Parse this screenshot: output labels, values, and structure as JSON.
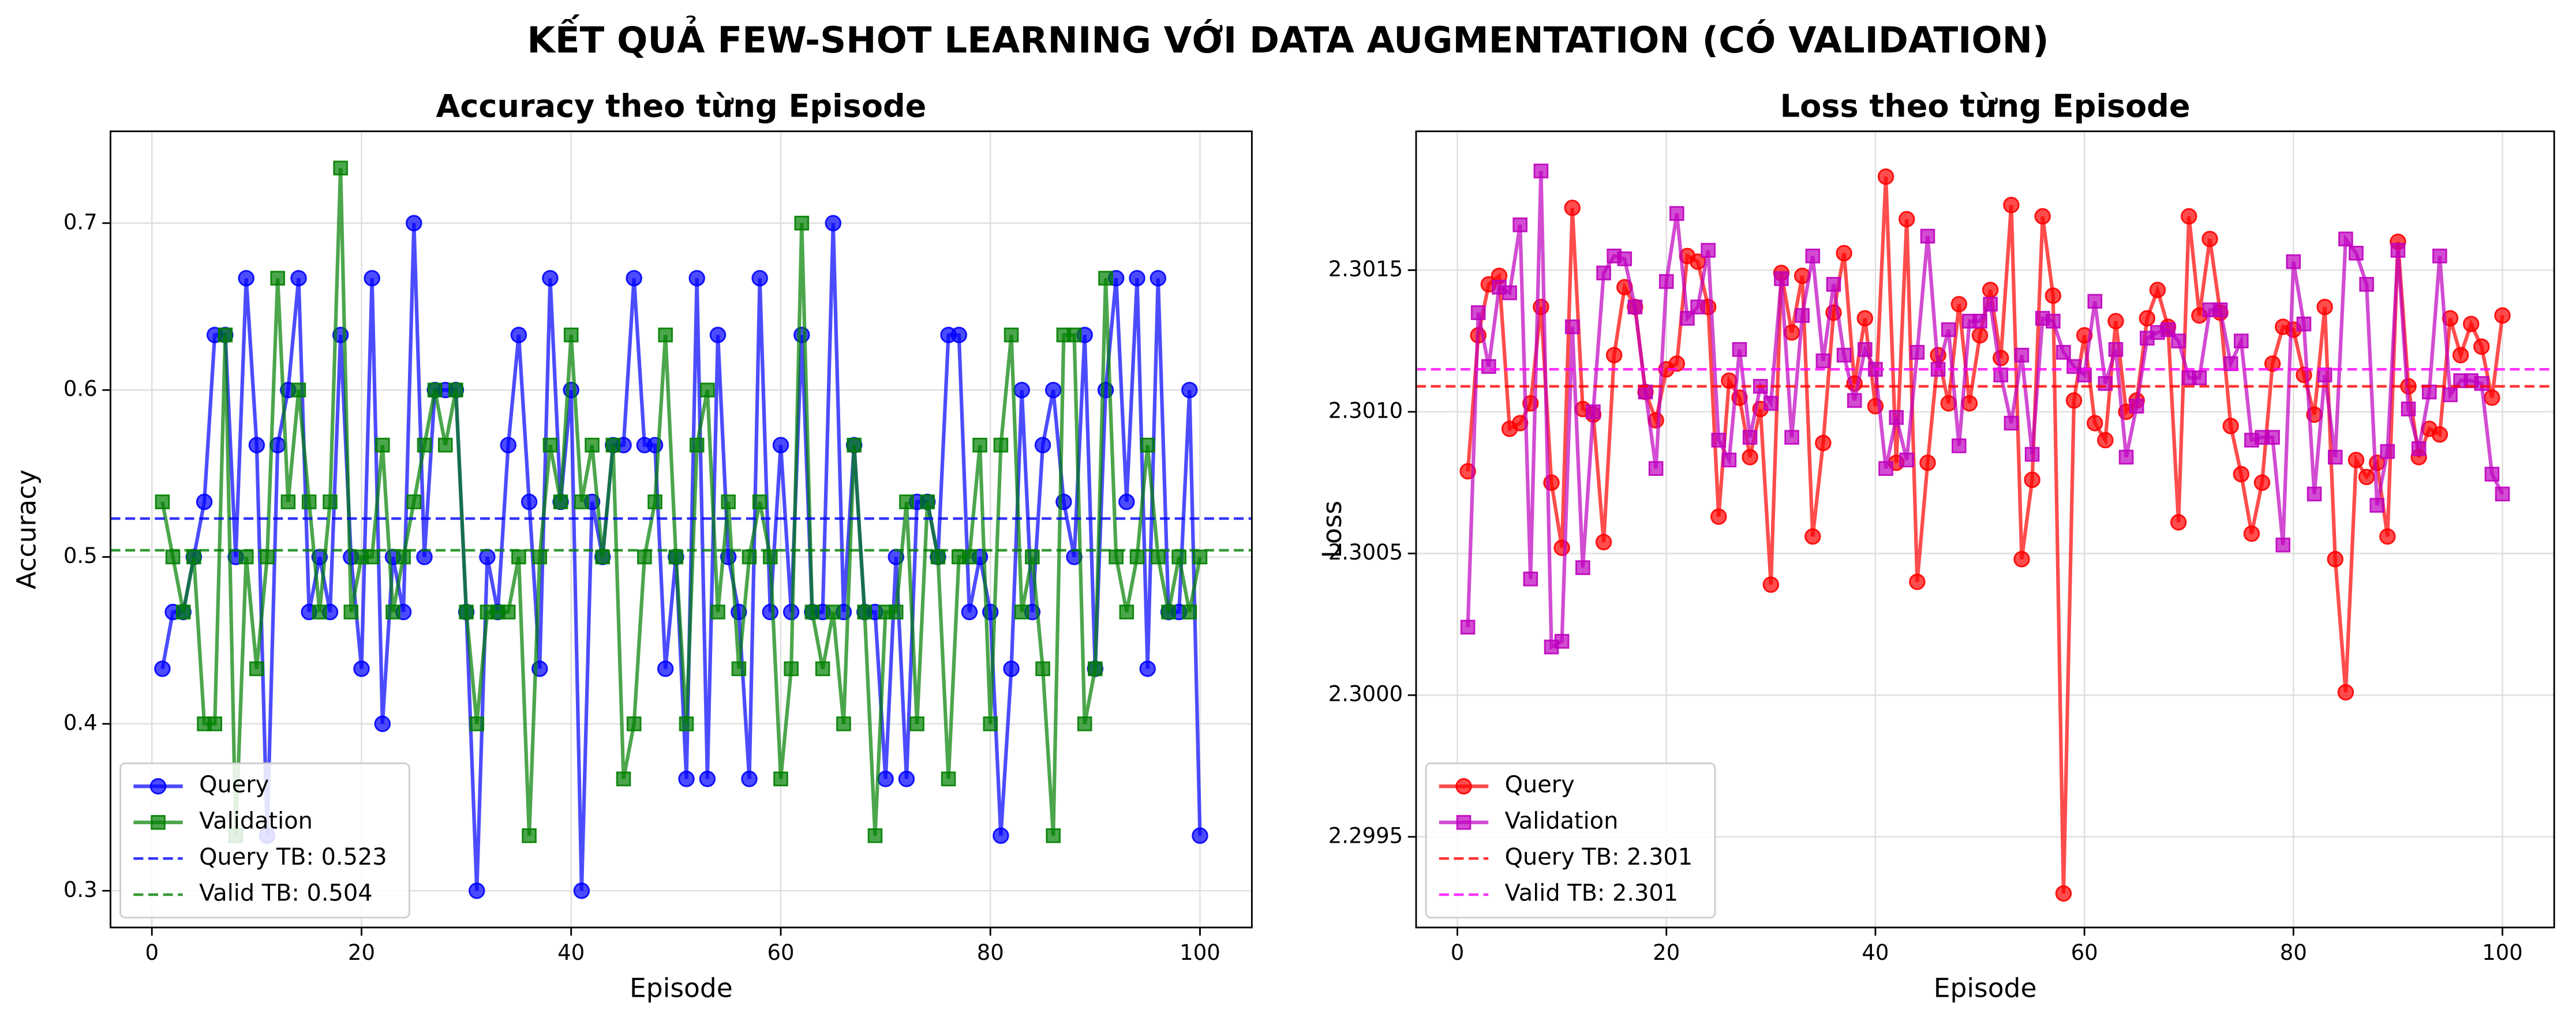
{
  "title": "KẾT QUẢ FEW-SHOT LEARNING VỚI DATA AUGMENTATION (CÓ VALIDATION)",
  "chart_data": [
    {
      "type": "line",
      "title": "Accuracy theo từng Episode",
      "xlabel": "Episode",
      "ylabel": "Accuracy",
      "x": [
        1,
        2,
        3,
        4,
        5,
        6,
        7,
        8,
        9,
        10,
        11,
        12,
        13,
        14,
        15,
        16,
        17,
        18,
        19,
        20,
        21,
        22,
        23,
        24,
        25,
        26,
        27,
        28,
        29,
        30,
        31,
        32,
        33,
        34,
        35,
        36,
        37,
        38,
        39,
        40,
        41,
        42,
        43,
        44,
        45,
        46,
        47,
        48,
        49,
        50,
        51,
        52,
        53,
        54,
        55,
        56,
        57,
        58,
        59,
        60,
        61,
        62,
        63,
        64,
        65,
        66,
        67,
        68,
        69,
        70,
        71,
        72,
        73,
        74,
        75,
        76,
        77,
        78,
        79,
        80,
        81,
        82,
        83,
        84,
        85,
        86,
        87,
        88,
        89,
        90,
        91,
        92,
        93,
        94,
        95,
        96,
        97,
        98,
        99,
        100
      ],
      "series": [
        {
          "name": "Query",
          "color": "#0000ff",
          "marker": "o",
          "values": [
            0.433,
            0.467,
            0.467,
            0.5,
            0.533,
            0.633,
            0.633,
            0.5,
            0.667,
            0.567,
            0.333,
            0.567,
            0.6,
            0.667,
            0.467,
            0.5,
            0.467,
            0.633,
            0.5,
            0.433,
            0.667,
            0.4,
            0.5,
            0.467,
            0.7,
            0.5,
            0.6,
            0.6,
            0.6,
            0.467,
            0.3,
            0.5,
            0.467,
            0.567,
            0.633,
            0.533,
            0.433,
            0.667,
            0.533,
            0.6,
            0.3,
            0.533,
            0.5,
            0.567,
            0.567,
            0.667,
            0.567,
            0.567,
            0.433,
            0.5,
            0.367,
            0.667,
            0.367,
            0.633,
            0.5,
            0.467,
            0.367,
            0.667,
            0.467,
            0.567,
            0.467,
            0.633,
            0.467,
            0.467,
            0.7,
            0.467,
            0.567,
            0.467,
            0.467,
            0.367,
            0.5,
            0.367,
            0.533,
            0.533,
            0.5,
            0.633,
            0.633,
            0.467,
            0.5,
            0.467,
            0.333,
            0.433,
            0.6,
            0.467,
            0.567,
            0.6,
            0.533,
            0.5,
            0.633,
            0.433,
            0.6,
            0.667,
            0.533,
            0.667,
            0.433,
            0.667,
            0.467,
            0.467,
            0.6,
            0.333
          ]
        },
        {
          "name": "Validation",
          "color": "#008000",
          "marker": "s",
          "values": [
            0.533,
            0.5,
            0.467,
            0.5,
            0.4,
            0.4,
            0.633,
            0.333,
            0.5,
            0.433,
            0.5,
            0.667,
            0.533,
            0.6,
            0.533,
            0.467,
            0.533,
            0.733,
            0.467,
            0.5,
            0.5,
            0.567,
            0.467,
            0.5,
            0.533,
            0.567,
            0.6,
            0.567,
            0.6,
            0.467,
            0.4,
            0.467,
            0.467,
            0.467,
            0.5,
            0.333,
            0.5,
            0.567,
            0.533,
            0.633,
            0.533,
            0.567,
            0.5,
            0.567,
            0.367,
            0.4,
            0.5,
            0.533,
            0.633,
            0.5,
            0.4,
            0.567,
            0.6,
            0.467,
            0.533,
            0.433,
            0.5,
            0.533,
            0.5,
            0.367,
            0.433,
            0.7,
            0.467,
            0.433,
            0.467,
            0.4,
            0.567,
            0.467,
            0.333,
            0.467,
            0.467,
            0.533,
            0.4,
            0.533,
            0.5,
            0.367,
            0.5,
            0.5,
            0.567,
            0.4,
            0.567,
            0.633,
            0.467,
            0.5,
            0.433,
            0.333,
            0.633,
            0.633,
            0.4,
            0.433,
            0.667,
            0.5,
            0.467,
            0.5,
            0.567,
            0.5,
            0.467,
            0.5,
            0.467,
            0.5
          ]
        }
      ],
      "hlines": [
        {
          "value": 0.523,
          "label": "Query TB: 0.523",
          "color": "#0000ff"
        },
        {
          "value": 0.504,
          "label": "Valid TB: 0.504",
          "color": "#008000"
        }
      ],
      "xlim": [
        -3.95,
        104.95
      ],
      "ylim": [
        0.278,
        0.755
      ],
      "xticks": [
        0,
        20,
        40,
        60,
        80,
        100
      ],
      "yticks": [
        0.3,
        0.4,
        0.5,
        0.6,
        0.7
      ],
      "grid": true,
      "legend": "lower left"
    },
    {
      "type": "line",
      "title": "Loss theo từng Episode",
      "xlabel": "Episode",
      "ylabel": "Loss",
      "x": [
        1,
        2,
        3,
        4,
        5,
        6,
        7,
        8,
        9,
        10,
        11,
        12,
        13,
        14,
        15,
        16,
        17,
        18,
        19,
        20,
        21,
        22,
        23,
        24,
        25,
        26,
        27,
        28,
        29,
        30,
        31,
        32,
        33,
        34,
        35,
        36,
        37,
        38,
        39,
        40,
        41,
        42,
        43,
        44,
        45,
        46,
        47,
        48,
        49,
        50,
        51,
        52,
        53,
        54,
        55,
        56,
        57,
        58,
        59,
        60,
        61,
        62,
        63,
        64,
        65,
        66,
        67,
        68,
        69,
        70,
        71,
        72,
        73,
        74,
        75,
        76,
        77,
        78,
        79,
        80,
        81,
        82,
        83,
        84,
        85,
        86,
        87,
        88,
        89,
        90,
        91,
        92,
        93,
        94,
        95,
        96,
        97,
        98,
        99,
        100
      ],
      "series": [
        {
          "name": "Query",
          "color": "#ff0000",
          "marker": "o",
          "values": [
            2.30079,
            2.30127,
            2.30145,
            2.30148,
            2.30094,
            2.30096,
            2.30103,
            2.30137,
            2.30075,
            2.30052,
            2.30172,
            2.30101,
            2.30099,
            2.30054,
            2.3012,
            2.30144,
            2.30137,
            2.30107,
            2.30097,
            2.30115,
            2.30117,
            2.30155,
            2.30153,
            2.30137,
            2.30063,
            2.30111,
            2.30105,
            2.30084,
            2.30101,
            2.30039,
            2.30149,
            2.30128,
            2.30148,
            2.30056,
            2.30089,
            2.30135,
            2.30156,
            2.3011,
            2.30133,
            2.30102,
            2.30183,
            2.30082,
            2.30168,
            2.3004,
            2.30082,
            2.3012,
            2.30103,
            2.30138,
            2.30103,
            2.30127,
            2.30143,
            2.30119,
            2.30173,
            2.30048,
            2.30076,
            2.30169,
            2.30141,
            2.2993,
            2.30104,
            2.30127,
            2.30096,
            2.3009,
            2.30132,
            2.301,
            2.30104,
            2.30133,
            2.30143,
            2.3013,
            2.30061,
            2.30169,
            2.30134,
            2.30161,
            2.30135,
            2.30095,
            2.30078,
            2.30057,
            2.30075,
            2.30117,
            2.3013,
            2.30129,
            2.30113,
            2.30099,
            2.30137,
            2.30048,
            2.30001,
            2.30083,
            2.30077,
            2.30082,
            2.30056,
            2.3016,
            2.30109,
            2.30084,
            2.30094,
            2.30092,
            2.30133,
            2.3012,
            2.30131,
            2.30123,
            2.30105,
            2.30134
          ]
        },
        {
          "name": "Validation",
          "color": "#bf00bf",
          "marker": "s",
          "values": [
            2.30024,
            2.30135,
            2.30116,
            2.30144,
            2.30142,
            2.30166,
            2.30041,
            2.30185,
            2.30017,
            2.30019,
            2.3013,
            2.30045,
            2.301,
            2.30149,
            2.30155,
            2.30154,
            2.30137,
            2.30107,
            2.3008,
            2.30146,
            2.3017,
            2.30133,
            2.30137,
            2.30157,
            2.3009,
            2.30083,
            2.30122,
            2.30091,
            2.30109,
            2.30103,
            2.30147,
            2.30091,
            2.30134,
            2.30155,
            2.30118,
            2.30145,
            2.3012,
            2.30104,
            2.30122,
            2.30115,
            2.3008,
            2.30098,
            2.30083,
            2.30121,
            2.30162,
            2.30115,
            2.30129,
            2.30088,
            2.30132,
            2.30132,
            2.30138,
            2.30113,
            2.30096,
            2.3012,
            2.30085,
            2.30133,
            2.30132,
            2.30121,
            2.30116,
            2.30113,
            2.30139,
            2.3011,
            2.30122,
            2.30084,
            2.30102,
            2.30126,
            2.30128,
            2.30129,
            2.30125,
            2.30112,
            2.30112,
            2.30136,
            2.30136,
            2.30117,
            2.30125,
            2.3009,
            2.30091,
            2.30091,
            2.30053,
            2.30153,
            2.30131,
            2.30071,
            2.30113,
            2.30084,
            2.30161,
            2.30156,
            2.30145,
            2.30067,
            2.30086,
            2.30157,
            2.30101,
            2.30087,
            2.30107,
            2.30155,
            2.30106,
            2.30111,
            2.30111,
            2.3011,
            2.30078,
            2.30071
          ]
        }
      ],
      "hlines": [
        {
          "value": 2.30109,
          "label": "Query TB: 2.301",
          "color": "#ff0000"
        },
        {
          "value": 2.30115,
          "label": "Valid TB: 2.301",
          "color": "#ff00ff"
        }
      ],
      "xlim": [
        -3.95,
        104.95
      ],
      "ylim": [
        2.29918,
        2.30199
      ],
      "xticks": [
        0,
        20,
        40,
        60,
        80,
        100
      ],
      "yticks": [
        2.2995,
        {
          "value": 2.3,
          "label": "2.3000"
        },
        2.3005,
        {
          "value": 2.301,
          "label": "2.3010"
        },
        2.3015
      ],
      "grid": true,
      "legend": "lower left"
    }
  ]
}
